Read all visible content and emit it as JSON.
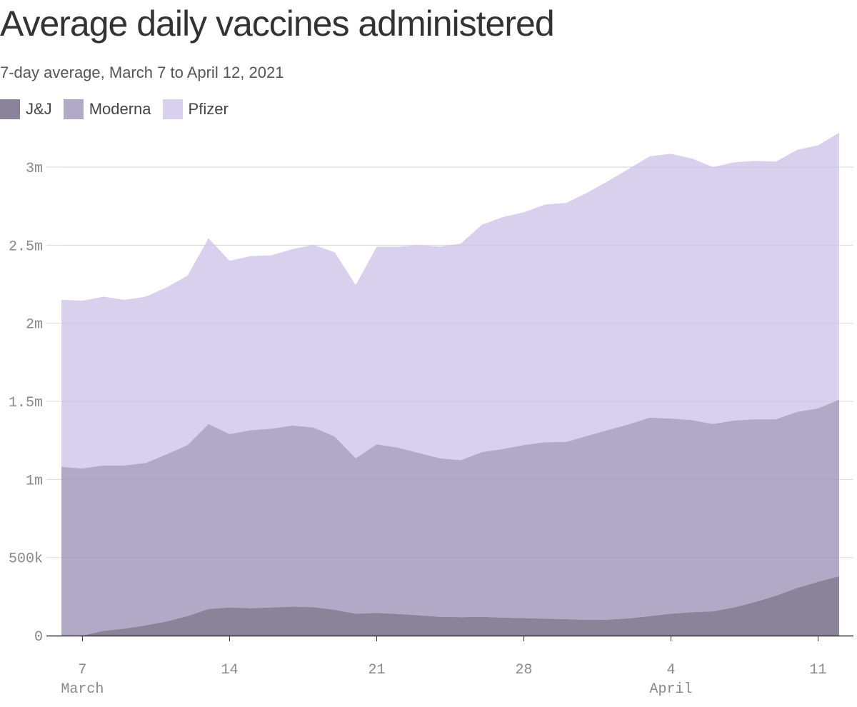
{
  "title": "Average daily vaccines administered",
  "subtitle": "7-day average, March 7 to April 12, 2021",
  "colors": {
    "jj": "#8a8399",
    "moderna": "#b2a9c6",
    "pfizer": "#d8d0ec",
    "grid": "#dddddd",
    "axis": "#333333",
    "tick_text": "#888888"
  },
  "chart_data": {
    "type": "area",
    "stacked": true,
    "title": "Average daily vaccines administered",
    "subtitle": "7-day average, March 7 to April 12, 2021",
    "x": [
      "2021-03-06",
      "2021-03-07",
      "2021-03-08",
      "2021-03-09",
      "2021-03-10",
      "2021-03-11",
      "2021-03-12",
      "2021-03-13",
      "2021-03-14",
      "2021-03-15",
      "2021-03-16",
      "2021-03-17",
      "2021-03-18",
      "2021-03-19",
      "2021-03-20",
      "2021-03-21",
      "2021-03-22",
      "2021-03-23",
      "2021-03-24",
      "2021-03-25",
      "2021-03-26",
      "2021-03-27",
      "2021-03-28",
      "2021-03-29",
      "2021-03-30",
      "2021-03-31",
      "2021-04-01",
      "2021-04-02",
      "2021-04-03",
      "2021-04-04",
      "2021-04-05",
      "2021-04-06",
      "2021-04-07",
      "2021-04-08",
      "2021-04-09",
      "2021-04-10",
      "2021-04-11",
      "2021-04-12"
    ],
    "series": [
      {
        "name": "J&J",
        "values": [
          0,
          0,
          30000,
          45000,
          65000,
          90000,
          125000,
          170000,
          180000,
          175000,
          180000,
          185000,
          182000,
          165000,
          140000,
          145000,
          138000,
          130000,
          120000,
          118000,
          120000,
          115000,
          112000,
          108000,
          105000,
          100000,
          102000,
          110000,
          125000,
          140000,
          150000,
          155000,
          180000,
          215000,
          255000,
          305000,
          345000,
          380000
        ]
      },
      {
        "name": "Moderna",
        "values": [
          1080000,
          1070000,
          1060000,
          1045000,
          1040000,
          1070000,
          1095000,
          1185000,
          1110000,
          1140000,
          1145000,
          1160000,
          1150000,
          1110000,
          995000,
          1080000,
          1065000,
          1040000,
          1015000,
          1005000,
          1055000,
          1080000,
          1108000,
          1130000,
          1135000,
          1178000,
          1214000,
          1243000,
          1271000,
          1250000,
          1230000,
          1200000,
          1197000,
          1170000,
          1130000,
          1128000,
          1110000,
          1130000
        ]
      },
      {
        "name": "Pfizer",
        "values": [
          1070000,
          1075000,
          1080000,
          1060000,
          1065000,
          1070000,
          1085000,
          1190000,
          1110000,
          1115000,
          1110000,
          1130000,
          1170000,
          1180000,
          1110000,
          1265000,
          1287000,
          1330000,
          1355000,
          1387000,
          1455000,
          1485000,
          1490000,
          1522000,
          1530000,
          1557000,
          1594000,
          1637000,
          1674000,
          1695000,
          1675000,
          1645000,
          1653000,
          1655000,
          1650000,
          1677000,
          1685000,
          1710000
        ]
      }
    ],
    "y_ticks": [
      {
        "value": 0,
        "label": "0"
      },
      {
        "value": 500000,
        "label": "500k"
      },
      {
        "value": 1000000,
        "label": "1m"
      },
      {
        "value": 1500000,
        "label": "1.5m"
      },
      {
        "value": 2000000,
        "label": "2m"
      },
      {
        "value": 2500000,
        "label": "2.5m"
      },
      {
        "value": 3000000,
        "label": "3m"
      }
    ],
    "x_ticks": [
      {
        "date": "2021-03-07",
        "label": "7",
        "month": "March"
      },
      {
        "date": "2021-03-14",
        "label": "14",
        "month": ""
      },
      {
        "date": "2021-03-21",
        "label": "21",
        "month": ""
      },
      {
        "date": "2021-03-28",
        "label": "28",
        "month": ""
      },
      {
        "date": "2021-04-04",
        "label": "4",
        "month": "April"
      },
      {
        "date": "2021-04-11",
        "label": "11",
        "month": ""
      }
    ],
    "ylim": [
      0,
      3000000
    ],
    "grid": true,
    "legend_position": "top-left"
  }
}
